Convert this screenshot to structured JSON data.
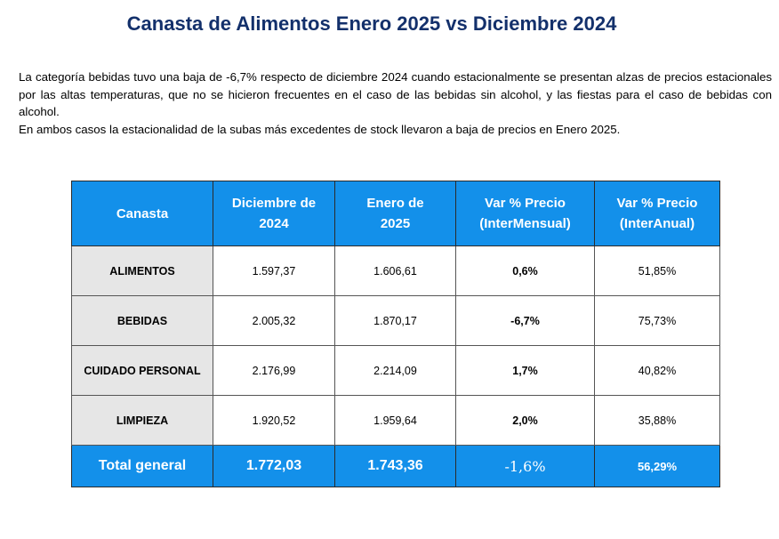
{
  "title": "Canasta de Alimentos Enero 2025 vs Diciembre 2024",
  "paragraph": {
    "p1": "La categoría bebidas tuvo una baja de -6,7% respecto de diciembre 2024 cuando estacionalmente se presentan alzas de precios estacionales por las altas temperaturas, que no se hicieron frecuentes en el caso de las bebidas sin alcohol, y las fiestas para el caso de bebidas con alcohol.",
    "p2": "En ambos casos la estacionalidad de la subas más excedentes de stock llevaron a baja de precios en Enero 2025."
  },
  "table": {
    "headers": [
      {
        "line1": "Canasta",
        "line2": ""
      },
      {
        "line1": "Diciembre de",
        "line2": "2024"
      },
      {
        "line1": "Enero de",
        "line2": "2025"
      },
      {
        "line1": "Var % Precio",
        "line2": "(InterMensual)"
      },
      {
        "line1": "Var % Precio",
        "line2": "(InterAnual)"
      }
    ],
    "rows": [
      {
        "canasta": "ALIMENTOS",
        "dic": "1.597,37",
        "ene": "1.606,61",
        "mensual": "0,6%",
        "anual": "51,85%"
      },
      {
        "canasta": "BEBIDAS",
        "dic": "2.005,32",
        "ene": "1.870,17",
        "mensual": "-6,7%",
        "anual": "75,73%"
      },
      {
        "canasta": "CUIDADO PERSONAL",
        "dic": "2.176,99",
        "ene": "2.214,09",
        "mensual": "1,7%",
        "anual": "40,82%"
      },
      {
        "canasta": "LIMPIEZA",
        "dic": "1.920,52",
        "ene": "1.959,64",
        "mensual": "2,0%",
        "anual": "35,88%"
      }
    ],
    "total": {
      "canasta": "Total general",
      "dic": "1.772,03",
      "ene": "1.743,36",
      "mensual": "-1,6%",
      "anual": "56,29%"
    }
  }
}
